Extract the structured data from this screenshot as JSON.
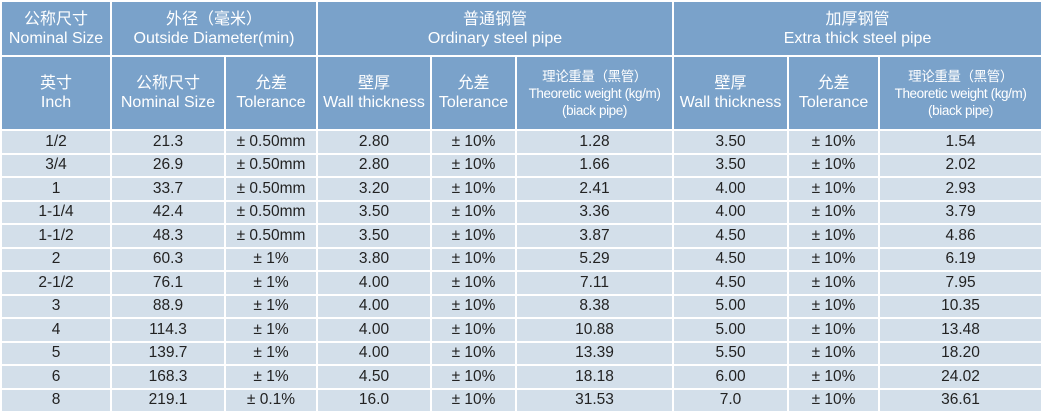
{
  "header_top": [
    {
      "cn": "公称尺寸",
      "en": "Nominal Size"
    },
    {
      "cn": "外径（毫米）",
      "en": "Outside Diameter(min)"
    },
    {
      "cn": "普通钢管",
      "en": "Ordinary steel pipe"
    },
    {
      "cn": "加厚钢管",
      "en": "Extra thick steel pipe"
    }
  ],
  "header_sub": [
    {
      "cn": "英寸",
      "en": "Inch"
    },
    {
      "cn": "公称尺寸",
      "en": "Nominal Size"
    },
    {
      "cn": "允差",
      "en": "Tolerance"
    },
    {
      "cn": "壁厚",
      "en": "Wall thickness"
    },
    {
      "cn": "允差",
      "en": "Tolerance"
    },
    {
      "cn": "理论重量（黑管）",
      "en": "Theoretic weight (kg/m)",
      "en2": "(biack pipe)"
    },
    {
      "cn": "壁厚",
      "en": "Wall thickness"
    },
    {
      "cn": "允差",
      "en": "Tolerance"
    },
    {
      "cn": "理论重量（黑管）",
      "en": "Theoretic weight (kg/m)",
      "en2": "(biack pipe)"
    }
  ],
  "rows": [
    [
      "1/2",
      "21.3",
      "± 0.50mm",
      "2.80",
      "± 10%",
      "1.28",
      "3.50",
      "± 10%",
      "1.54"
    ],
    [
      "3/4",
      "26.9",
      "± 0.50mm",
      "2.80",
      "± 10%",
      "1.66",
      "3.50",
      "± 10%",
      "2.02"
    ],
    [
      "1",
      "33.7",
      "± 0.50mm",
      "3.20",
      "± 10%",
      "2.41",
      "4.00",
      "± 10%",
      "2.93"
    ],
    [
      "1-1/4",
      "42.4",
      "± 0.50mm",
      "3.50",
      "± 10%",
      "3.36",
      "4.00",
      "± 10%",
      "3.79"
    ],
    [
      "1-1/2",
      "48.3",
      "± 0.50mm",
      "3.50",
      "± 10%",
      "3.87",
      "4.50",
      "± 10%",
      "4.86"
    ],
    [
      "2",
      "60.3",
      "± 1%",
      "3.80",
      "± 10%",
      "5.29",
      "4.50",
      "± 10%",
      "6.19"
    ],
    [
      "2-1/2",
      "76.1",
      "± 1%",
      "4.00",
      "± 10%",
      "7.11",
      "4.50",
      "± 10%",
      "7.95"
    ],
    [
      "3",
      "88.9",
      "± 1%",
      "4.00",
      "± 10%",
      "8.38",
      "5.00",
      "± 10%",
      "10.35"
    ],
    [
      "4",
      "114.3",
      "± 1%",
      "4.00",
      "± 10%",
      "10.88",
      "5.00",
      "± 10%",
      "13.48"
    ],
    [
      "5",
      "139.7",
      "± 1%",
      "4.00",
      "± 10%",
      "13.39",
      "5.50",
      "± 10%",
      "18.20"
    ],
    [
      "6",
      "168.3",
      "± 1%",
      "4.50",
      "± 10%",
      "18.18",
      "6.00",
      "± 10%",
      "24.02"
    ],
    [
      "8",
      "219.1",
      "± 0.1%",
      "16.0",
      "± 10%",
      "31.53",
      "7.0",
      "± 10%",
      "36.61"
    ]
  ],
  "colors": {
    "header_bg": "#7aa2ca",
    "row_bg": "#d3dfea",
    "border": "#ffffff"
  }
}
